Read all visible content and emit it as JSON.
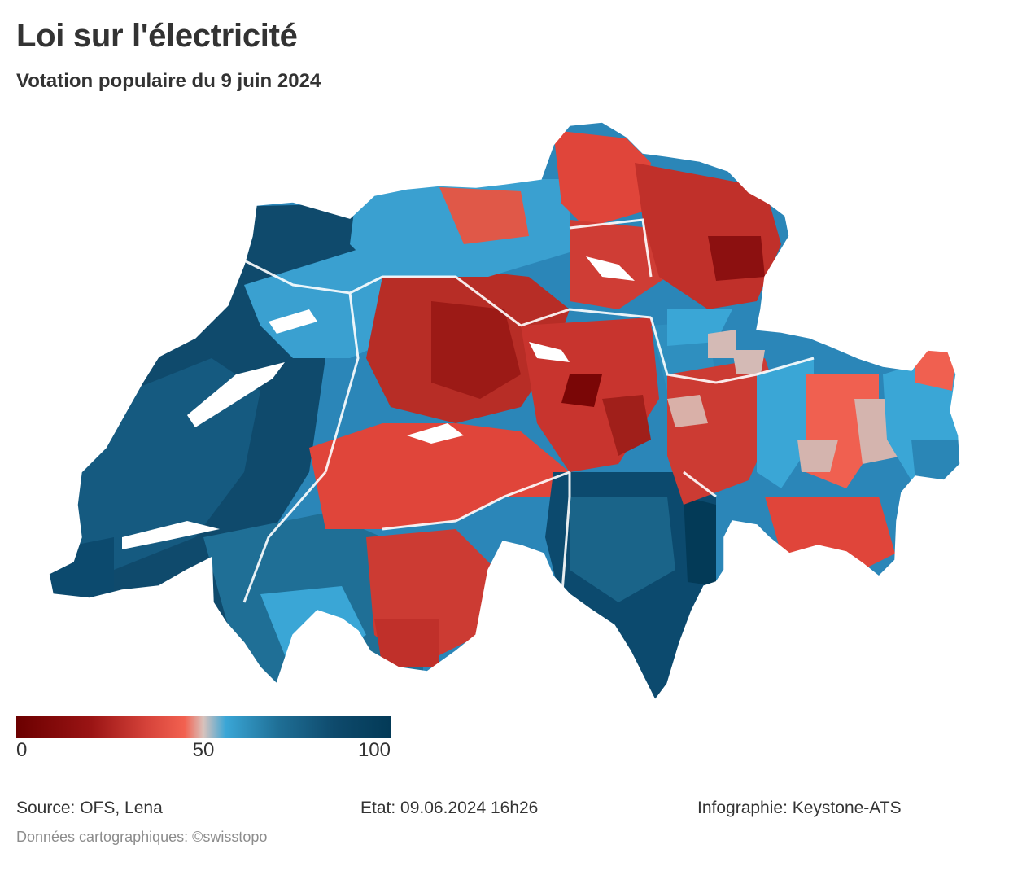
{
  "title": "Loi sur l'électricité",
  "subtitle": "Votation populaire du 9 juin 2024",
  "map": {
    "region": "Suisse",
    "unit": "communes",
    "color_scale": {
      "min": 0,
      "mid": 50,
      "max": 100,
      "stops": [
        {
          "value": 0,
          "color": "#6b0000"
        },
        {
          "value": 20,
          "color": "#9a1414"
        },
        {
          "value": 35,
          "color": "#d6433a"
        },
        {
          "value": 45,
          "color": "#f26150"
        },
        {
          "value": 50,
          "color": "#d9c2bc"
        },
        {
          "value": 56,
          "color": "#3aa6d6"
        },
        {
          "value": 70,
          "color": "#1f6f96"
        },
        {
          "value": 85,
          "color": "#0e4a6c"
        },
        {
          "value": 100,
          "color": "#033a57"
        }
      ]
    }
  },
  "legend": {
    "ticks": [
      "0",
      "50",
      "100"
    ]
  },
  "footer": {
    "source": "Source: OFS, Lena",
    "status": "Etat: 09.06.2024 16h26",
    "credit": "Infographie: Keystone-ATS",
    "map_data": "Données cartographiques: ©swisstopo"
  }
}
